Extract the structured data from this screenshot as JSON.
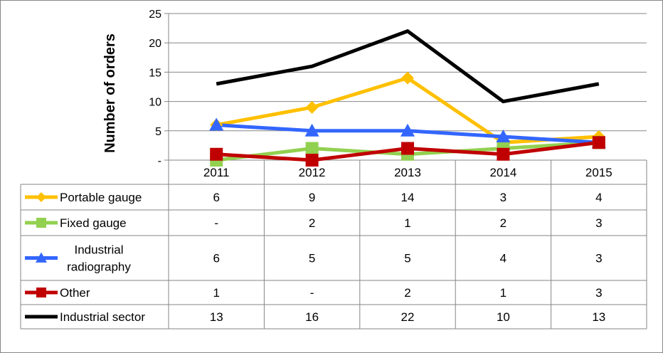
{
  "chart_data": {
    "type": "line",
    "ylabel": "Number of orders",
    "ylim": [
      0,
      25
    ],
    "yticks": [
      {
        "value": 0,
        "label": "-"
      },
      {
        "value": 5,
        "label": "5"
      },
      {
        "value": 10,
        "label": "10"
      },
      {
        "value": 15,
        "label": "15"
      },
      {
        "value": 20,
        "label": "20"
      },
      {
        "value": 25,
        "label": "25"
      }
    ],
    "categories": [
      "2011",
      "2012",
      "2013",
      "2014",
      "2015"
    ],
    "grid": true,
    "legend": "data table rows",
    "series": [
      {
        "name": "Portable gauge",
        "color": "#FFC000",
        "marker": "diamond",
        "values": [
          6,
          9,
          14,
          3,
          4
        ],
        "labels": [
          "6",
          "9",
          "14",
          "3",
          "4"
        ]
      },
      {
        "name": "Fixed gauge",
        "color": "#92D050",
        "marker": "square",
        "values": [
          0,
          2,
          1,
          2,
          3
        ],
        "labels": [
          "-",
          "2",
          "1",
          "2",
          "3"
        ]
      },
      {
        "name": "Industrial radiography",
        "name_lines": [
          "Industrial",
          "radiography"
        ],
        "color": "#3366FF",
        "marker": "triangle",
        "values": [
          6,
          5,
          5,
          4,
          3
        ],
        "labels": [
          "6",
          "5",
          "5",
          "4",
          "3"
        ]
      },
      {
        "name": "Other",
        "color": "#C00000",
        "marker": "square",
        "values": [
          1,
          0,
          2,
          1,
          3
        ],
        "labels": [
          "1",
          "-",
          "2",
          "1",
          "3"
        ]
      },
      {
        "name": "Industrial sector",
        "color": "#000000",
        "marker": "none",
        "values": [
          13,
          16,
          22,
          10,
          13
        ],
        "labels": [
          "13",
          "16",
          "22",
          "10",
          "13"
        ]
      }
    ]
  }
}
